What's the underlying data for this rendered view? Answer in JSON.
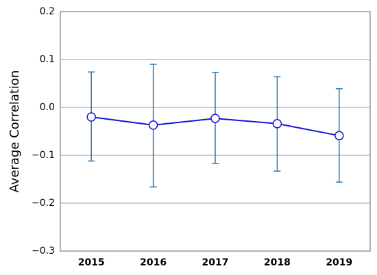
{
  "chart_data": {
    "type": "line",
    "y_label": "Average Correlation",
    "categories": [
      "2015",
      "2016",
      "2017",
      "2018",
      "2019"
    ],
    "series": [
      {
        "color": "#1414dc",
        "error_color": "#2a78b0",
        "values": [
          -0.02,
          -0.037,
          -0.023,
          -0.034,
          -0.059
        ],
        "upper": [
          0.074,
          0.09,
          0.073,
          0.064,
          0.039
        ],
        "lower": [
          -0.112,
          -0.166,
          -0.117,
          -0.133,
          -0.156
        ]
      }
    ],
    "ylim": [
      -0.3,
      0.2
    ],
    "yticks": [
      {
        "value": -0.3,
        "label": "−0.3"
      },
      {
        "value": -0.2,
        "label": "−0.2"
      },
      {
        "value": -0.1,
        "label": "−0.1"
      },
      {
        "value": 0,
        "label": "0.0"
      },
      0.1,
      0.2
    ],
    "grid": true
  }
}
